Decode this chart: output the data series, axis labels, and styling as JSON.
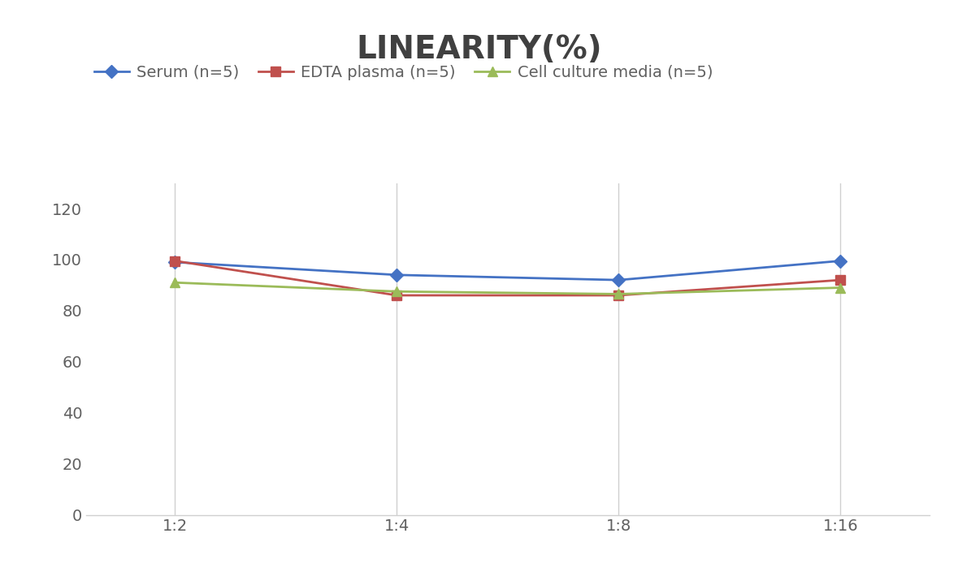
{
  "title": "LINEARITY(%)",
  "title_fontsize": 28,
  "title_fontweight": "bold",
  "title_color": "#404040",
  "x_labels": [
    "1:2",
    "1:4",
    "1:8",
    "1:16"
  ],
  "x_positions": [
    0,
    1,
    2,
    3
  ],
  "series": [
    {
      "label": "Serum (n=5)",
      "values": [
        99,
        94,
        92,
        99.5
      ],
      "color": "#4472C4",
      "marker": "D",
      "markersize": 8,
      "linewidth": 2
    },
    {
      "label": "EDTA plasma (n=5)",
      "values": [
        99.5,
        86,
        86,
        92
      ],
      "color": "#C0504D",
      "marker": "s",
      "markersize": 8,
      "linewidth": 2
    },
    {
      "label": "Cell culture media (n=5)",
      "values": [
        91,
        87.5,
        86.5,
        89
      ],
      "color": "#9BBB59",
      "marker": "^",
      "markersize": 9,
      "linewidth": 2
    }
  ],
  "ylim": [
    0,
    130
  ],
  "yticks": [
    0,
    20,
    40,
    60,
    80,
    100,
    120
  ],
  "xlim": [
    -0.4,
    3.4
  ],
  "grid_color": "#D0D0D0",
  "background_color": "#FFFFFF",
  "legend_fontsize": 14,
  "tick_fontsize": 14,
  "tick_color": "#606060"
}
